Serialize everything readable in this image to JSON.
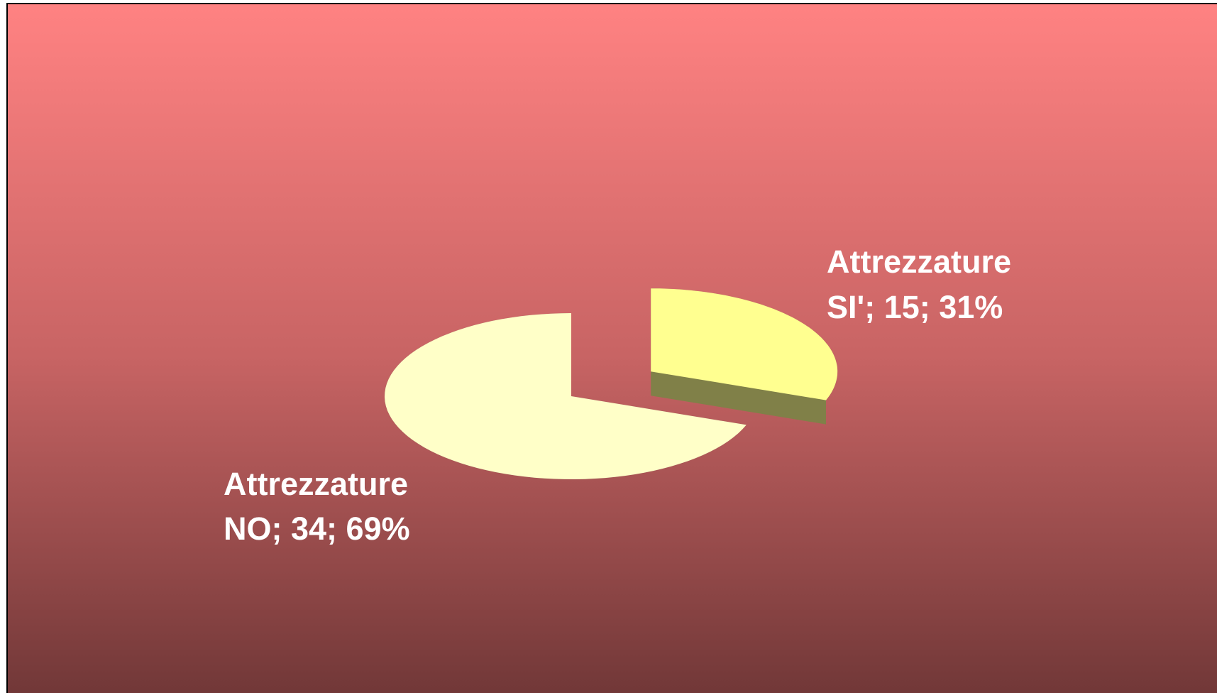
{
  "chart_data": {
    "type": "pie3d",
    "values": [
      15,
      34
    ],
    "value_labels": [
      [
        "Attrezzature",
        "SI'; 15; 31%"
      ],
      [
        "Attrezzature",
        "NO; 34; 69%"
      ]
    ],
    "colors": [
      "#ffff90",
      "#ffffc8"
    ],
    "side_colors": [
      "#808048",
      "#808060"
    ],
    "exploded": [
      true,
      false
    ]
  }
}
